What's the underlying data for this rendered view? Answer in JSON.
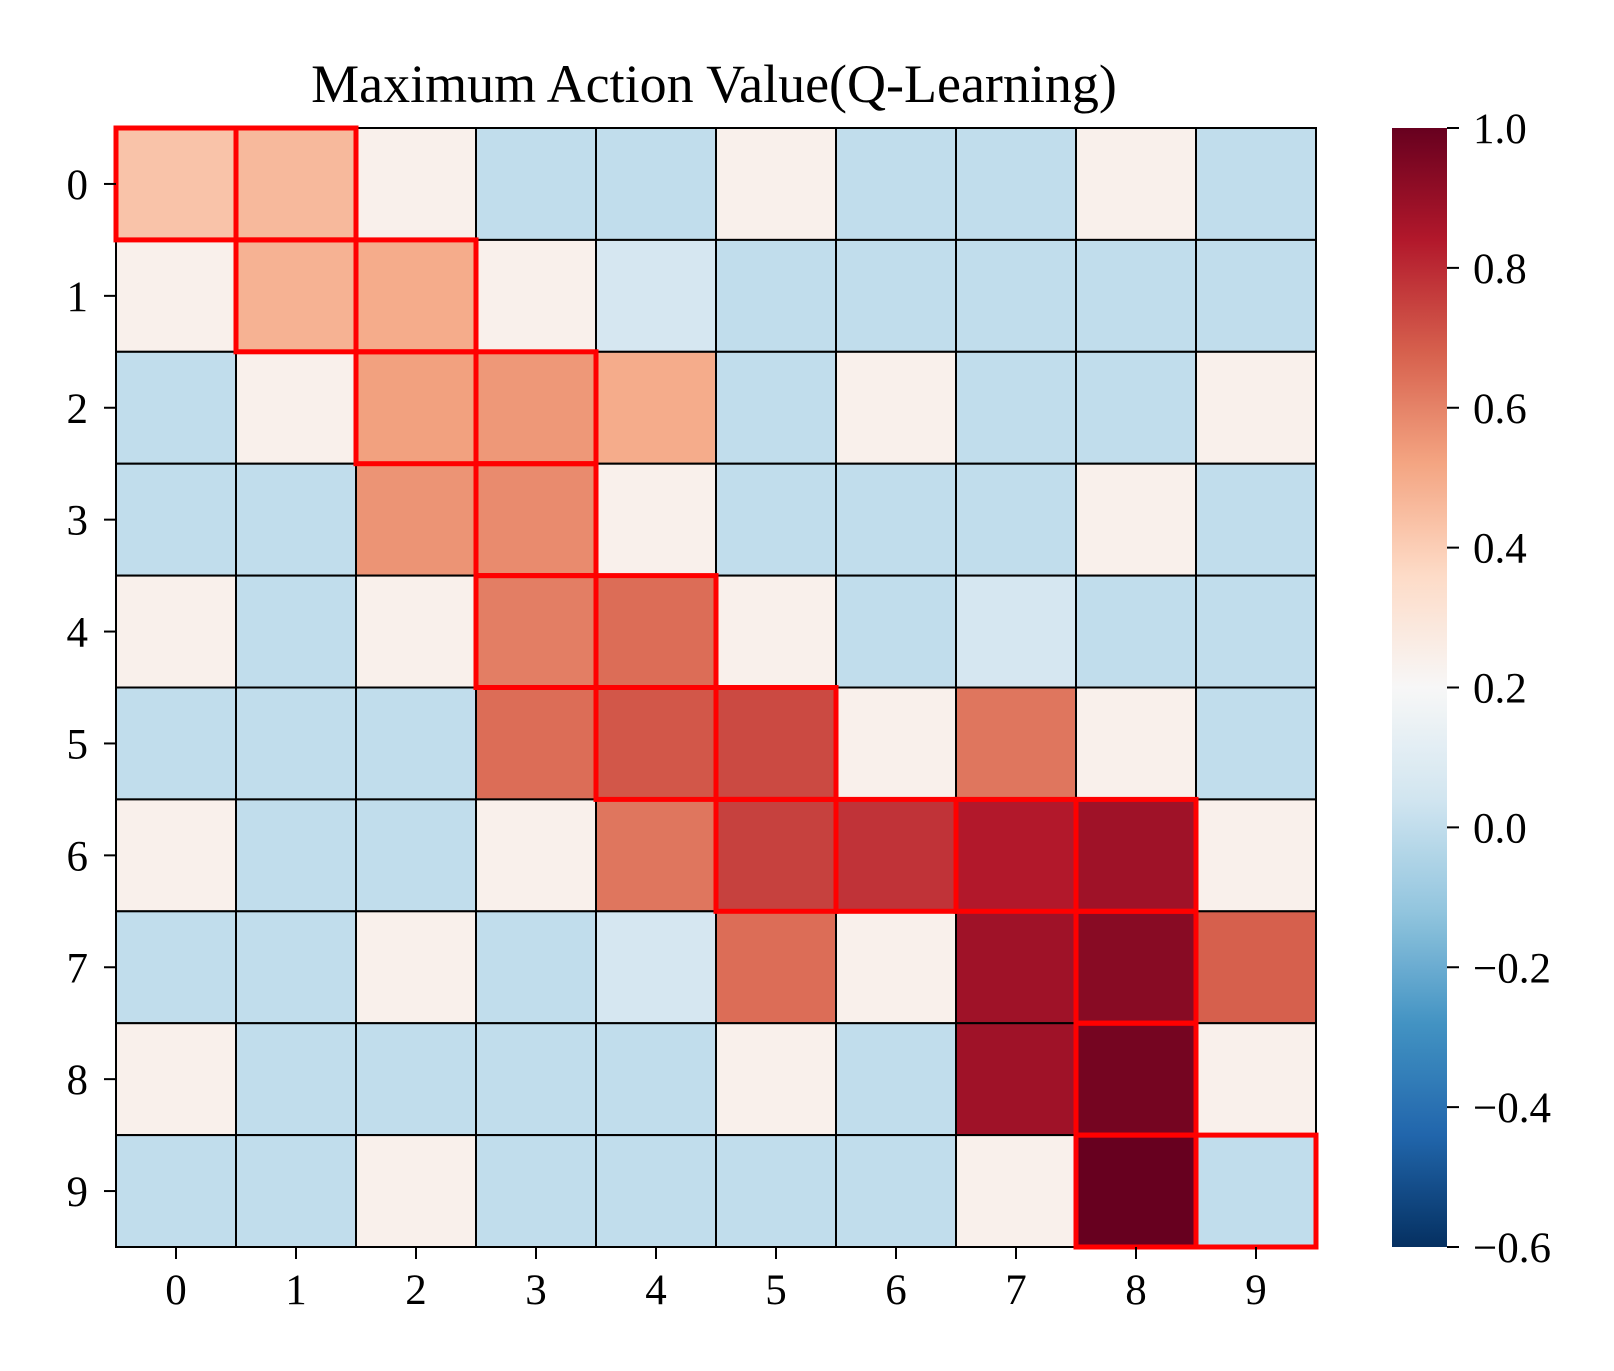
{
  "chart_data": {
    "type": "heatmap",
    "title": "Maximum Action Value(Q-Learning)",
    "xlabel": "",
    "ylabel": "",
    "x_tick_labels": [
      "0",
      "1",
      "2",
      "3",
      "4",
      "5",
      "6",
      "7",
      "8",
      "9"
    ],
    "y_tick_labels": [
      "0",
      "1",
      "2",
      "3",
      "4",
      "5",
      "6",
      "7",
      "8",
      "9"
    ],
    "values": [
      [
        0.43,
        0.46,
        0.24,
        0.0,
        0.0,
        0.24,
        0.0,
        0.0,
        0.24,
        0.0
      ],
      [
        0.24,
        0.48,
        0.5,
        0.24,
        0.06,
        0.0,
        0.0,
        0.0,
        0.0,
        0.0
      ],
      [
        0.0,
        0.24,
        0.53,
        0.55,
        0.5,
        0.0,
        0.24,
        0.0,
        0.0,
        0.24
      ],
      [
        0.0,
        0.0,
        0.56,
        0.58,
        0.24,
        0.0,
        0.0,
        0.0,
        0.24,
        0.0
      ],
      [
        0.24,
        0.0,
        0.24,
        0.61,
        0.65,
        0.24,
        0.0,
        0.06,
        0.0,
        0.0
      ],
      [
        0.0,
        0.0,
        0.0,
        0.65,
        0.7,
        0.73,
        0.24,
        0.63,
        0.24,
        0.0
      ],
      [
        0.24,
        0.0,
        0.0,
        0.24,
        0.63,
        0.75,
        0.78,
        0.84,
        0.88,
        0.24
      ],
      [
        0.0,
        0.0,
        0.24,
        0.0,
        0.06,
        0.65,
        0.24,
        0.88,
        0.93,
        0.68
      ],
      [
        0.24,
        0.0,
        0.0,
        0.0,
        0.0,
        0.24,
        0.0,
        0.88,
        0.97,
        0.24
      ],
      [
        0.0,
        0.0,
        0.24,
        0.0,
        0.0,
        0.0,
        0.0,
        0.24,
        1.0,
        0.0
      ]
    ],
    "highlighted_path": [
      [
        0,
        0
      ],
      [
        0,
        1
      ],
      [
        1,
        1
      ],
      [
        1,
        2
      ],
      [
        2,
        2
      ],
      [
        2,
        3
      ],
      [
        3,
        3
      ],
      [
        4,
        3
      ],
      [
        4,
        4
      ],
      [
        5,
        4
      ],
      [
        5,
        5
      ],
      [
        6,
        5
      ],
      [
        6,
        6
      ],
      [
        6,
        7
      ],
      [
        6,
        8
      ],
      [
        7,
        8
      ],
      [
        8,
        8
      ],
      [
        9,
        8
      ],
      [
        9,
        9
      ]
    ],
    "highlight_color": "#ff0000",
    "colormap": "RdBu_r",
    "colorbar": {
      "min": -0.6,
      "max": 1.0,
      "ticks": [
        1.0,
        0.8,
        0.6,
        0.4,
        0.2,
        0.0,
        -0.2,
        -0.4,
        -0.6
      ],
      "tick_labels": [
        "1.0",
        "0.8",
        "0.6",
        "0.4",
        "0.2",
        "0.0",
        "−0.2",
        "−0.4",
        "−0.6"
      ]
    }
  }
}
